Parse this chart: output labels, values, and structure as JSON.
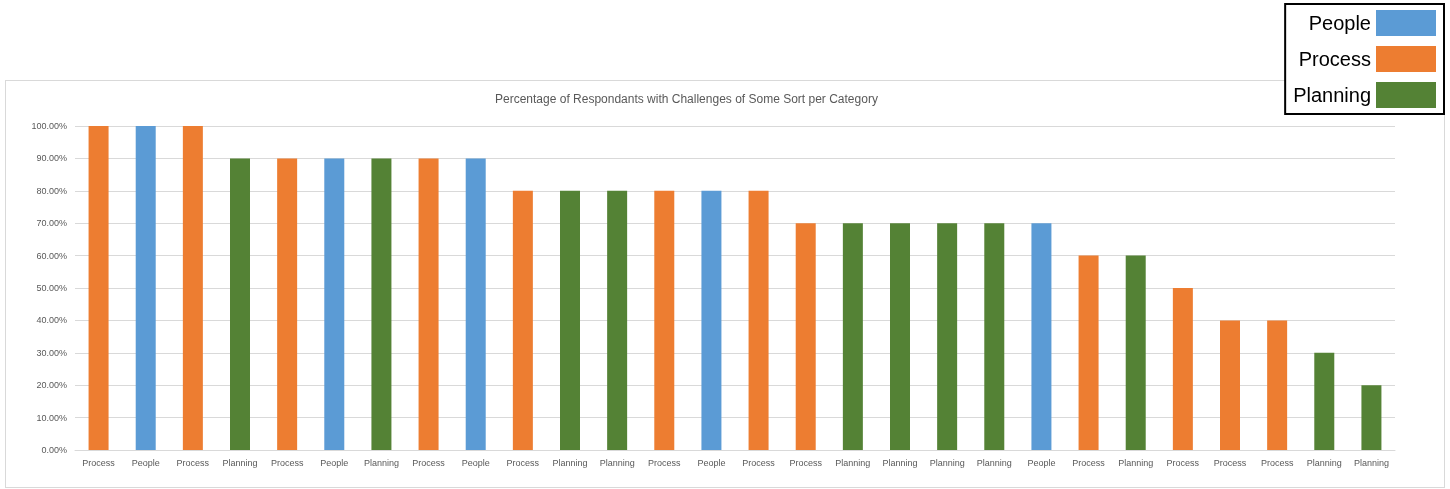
{
  "chart_data": {
    "type": "bar",
    "title": "Percentage of Respondants with Challenges of Some Sort per Category",
    "categories": [
      "Process",
      "People",
      "Process",
      "Planning",
      "Process",
      "People",
      "Planning",
      "Process",
      "People",
      "Process",
      "Planning",
      "Planning",
      "Process",
      "People",
      "Process",
      "Process",
      "Planning",
      "Planning",
      "Planning",
      "Planning",
      "People",
      "Process",
      "Planning",
      "Process",
      "Process",
      "Process",
      "Planning",
      "Planning"
    ],
    "series": [
      {
        "name": "People",
        "color": "#5b9bd5",
        "values": [
          null,
          100,
          null,
          null,
          null,
          90,
          null,
          null,
          90,
          null,
          null,
          null,
          null,
          80,
          null,
          null,
          null,
          null,
          null,
          null,
          70,
          null,
          null,
          null,
          null,
          null,
          null,
          null
        ]
      },
      {
        "name": "Process",
        "color": "#ed7d31",
        "values": [
          100,
          null,
          100,
          null,
          90,
          null,
          null,
          90,
          null,
          80,
          null,
          null,
          80,
          null,
          80,
          70,
          null,
          null,
          null,
          null,
          null,
          60,
          null,
          50,
          40,
          40,
          null,
          null
        ]
      },
      {
        "name": "Planning",
        "color": "#548235",
        "values": [
          null,
          null,
          null,
          90,
          null,
          null,
          90,
          null,
          null,
          null,
          80,
          80,
          null,
          null,
          null,
          null,
          70,
          70,
          70,
          70,
          null,
          null,
          60,
          null,
          null,
          null,
          30,
          20
        ]
      }
    ],
    "ylim": [
      0,
      100
    ],
    "yticks": [
      {
        "value": 0,
        "label": "0.00%"
      },
      {
        "value": 10,
        "label": "10.00%"
      },
      {
        "value": 20,
        "label": "20.00%"
      },
      {
        "value": 30,
        "label": "30.00%"
      },
      {
        "value": 40,
        "label": "40.00%"
      },
      {
        "value": 50,
        "label": "50.00%"
      },
      {
        "value": 60,
        "label": "60.00%"
      },
      {
        "value": 70,
        "label": "70.00%"
      },
      {
        "value": 80,
        "label": "80.00%"
      },
      {
        "value": 90,
        "label": "90.00%"
      },
      {
        "value": 100,
        "label": "100.00%"
      }
    ],
    "grid": "y",
    "legend": "top right"
  }
}
